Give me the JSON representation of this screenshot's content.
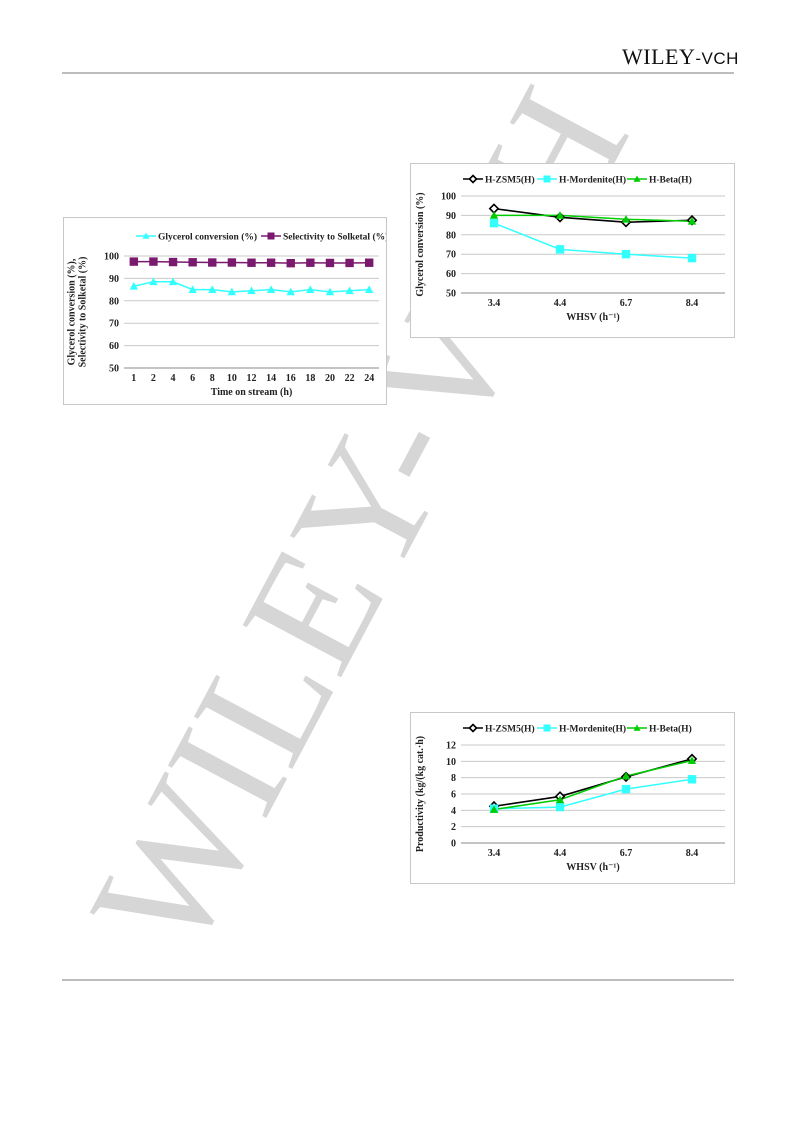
{
  "header": {
    "logo_main": "WILEY",
    "logo_suffix": "-VCH"
  },
  "watermark": {
    "text": "WILEY-VCH",
    "color": "#d6d6d6"
  },
  "chart_data": [
    {
      "type": "line",
      "xlabel": "Time on stream (h)",
      "ylabel_lines": [
        "Glycerol conversion (%),",
        "Selectivity to Solketal (%)"
      ],
      "categories": [
        "1",
        "2",
        "4",
        "6",
        "8",
        "10",
        "12",
        "14",
        "16",
        "18",
        "20",
        "22",
        "24"
      ],
      "ylim": [
        50,
        100
      ],
      "yticks": [
        50,
        60,
        70,
        80,
        90,
        100
      ],
      "grid": true,
      "legend": "top",
      "series": [
        {
          "name": "Glycerol conversion (%)",
          "color": "#33ffff",
          "marker": "triangle",
          "values": [
            86.5,
            88.5,
            88.5,
            85,
            85,
            84,
            84.5,
            85,
            84,
            85,
            84,
            84.5,
            85
          ]
        },
        {
          "name": "Selectivity to Solketal (%)",
          "color": "#7a1a6e",
          "marker": "square",
          "values": [
            97.5,
            97.5,
            97.3,
            97.2,
            97.1,
            97.1,
            97,
            97,
            96.8,
            97,
            96.9,
            96.9,
            97
          ]
        }
      ]
    },
    {
      "type": "line",
      "xlabel": "WHSV (h⁻¹)",
      "ylabel_lines": [
        "Glycerol conversion (%)"
      ],
      "categories": [
        "3.4",
        "4.4",
        "6.7",
        "8.4"
      ],
      "ylim": [
        50,
        100
      ],
      "yticks": [
        50,
        60,
        70,
        80,
        90,
        100
      ],
      "grid": true,
      "legend": "top",
      "series": [
        {
          "name": "H-ZSM5(H)",
          "color": "#000000",
          "marker": "diamond",
          "values": [
            93.5,
            89,
            86.5,
            87.5
          ]
        },
        {
          "name": "H-Mordenite(H)",
          "color": "#33ffff",
          "marker": "square",
          "values": [
            86,
            72.5,
            70,
            68
          ]
        },
        {
          "name": "H-Beta(H)",
          "color": "#00cc00",
          "marker": "triangle",
          "values": [
            90,
            90,
            88,
            87
          ]
        }
      ]
    },
    {
      "type": "line",
      "xlabel": "WHSV (h⁻¹)",
      "ylabel_lines": [
        "Productivity (kg/(kg cat.·h)"
      ],
      "categories": [
        "3.4",
        "4.4",
        "6.7",
        "8.4"
      ],
      "ylim": [
        0,
        12
      ],
      "yticks": [
        0,
        2,
        4,
        6,
        8,
        10,
        12
      ],
      "grid": true,
      "legend": "top",
      "series": [
        {
          "name": "H-ZSM5(H)",
          "color": "#000000",
          "marker": "diamond",
          "values": [
            4.5,
            5.7,
            8.1,
            10.3
          ]
        },
        {
          "name": "H-Mordenite(H)",
          "color": "#33ffff",
          "marker": "square",
          "values": [
            4.2,
            4.4,
            6.6,
            7.8
          ]
        },
        {
          "name": "H-Beta(H)",
          "color": "#00cc00",
          "marker": "triangle",
          "values": [
            4.1,
            5.3,
            8.2,
            10.1
          ]
        }
      ]
    }
  ]
}
